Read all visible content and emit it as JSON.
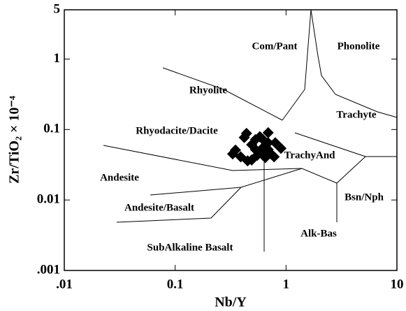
{
  "chart_data": {
    "type": "scatter",
    "xlabel": "Nb/Y",
    "ylabel": "Zr/TiO₂ × 10⁻⁴",
    "xscale": "log",
    "yscale": "log",
    "xlim": [
      0.01,
      10
    ],
    "ylim": [
      0.001,
      5
    ],
    "xticks": [
      {
        "value": 0.01,
        "label": ".01"
      },
      0.1,
      1,
      10
    ],
    "yticks": [
      {
        "value": 0.001,
        "label": ".001"
      },
      {
        "value": 0.01,
        "label": "0.01"
      },
      0.1,
      1,
      5
    ],
    "marker": "diamond",
    "color": "#000000",
    "x": [
      0.44,
      0.42,
      0.49,
      0.53,
      0.58,
      0.63,
      0.69,
      0.69,
      0.62,
      0.55,
      0.45,
      0.49,
      0.33,
      0.35,
      0.39,
      0.69,
      0.78,
      0.9,
      0.73,
      0.65,
      0.53,
      0.58,
      0.8
    ],
    "y": [
      0.088,
      0.077,
      0.061,
      0.052,
      0.048,
      0.057,
      0.065,
      0.09,
      0.072,
      0.043,
      0.036,
      0.037,
      0.045,
      0.051,
      0.041,
      0.052,
      0.041,
      0.054,
      0.045,
      0.04,
      0.072,
      0.079,
      0.065
    ],
    "annotations": [
      "Com/Pant",
      "Phonolite",
      "Rhyolite",
      "Trachyte",
      "Rhyodacite/Dacite",
      "TrachyAnd",
      "Andesite",
      "Bsn/Nph",
      "Andesite/Basalt",
      "Alk-Bas",
      "SubAlkaline Basalt"
    ]
  }
}
